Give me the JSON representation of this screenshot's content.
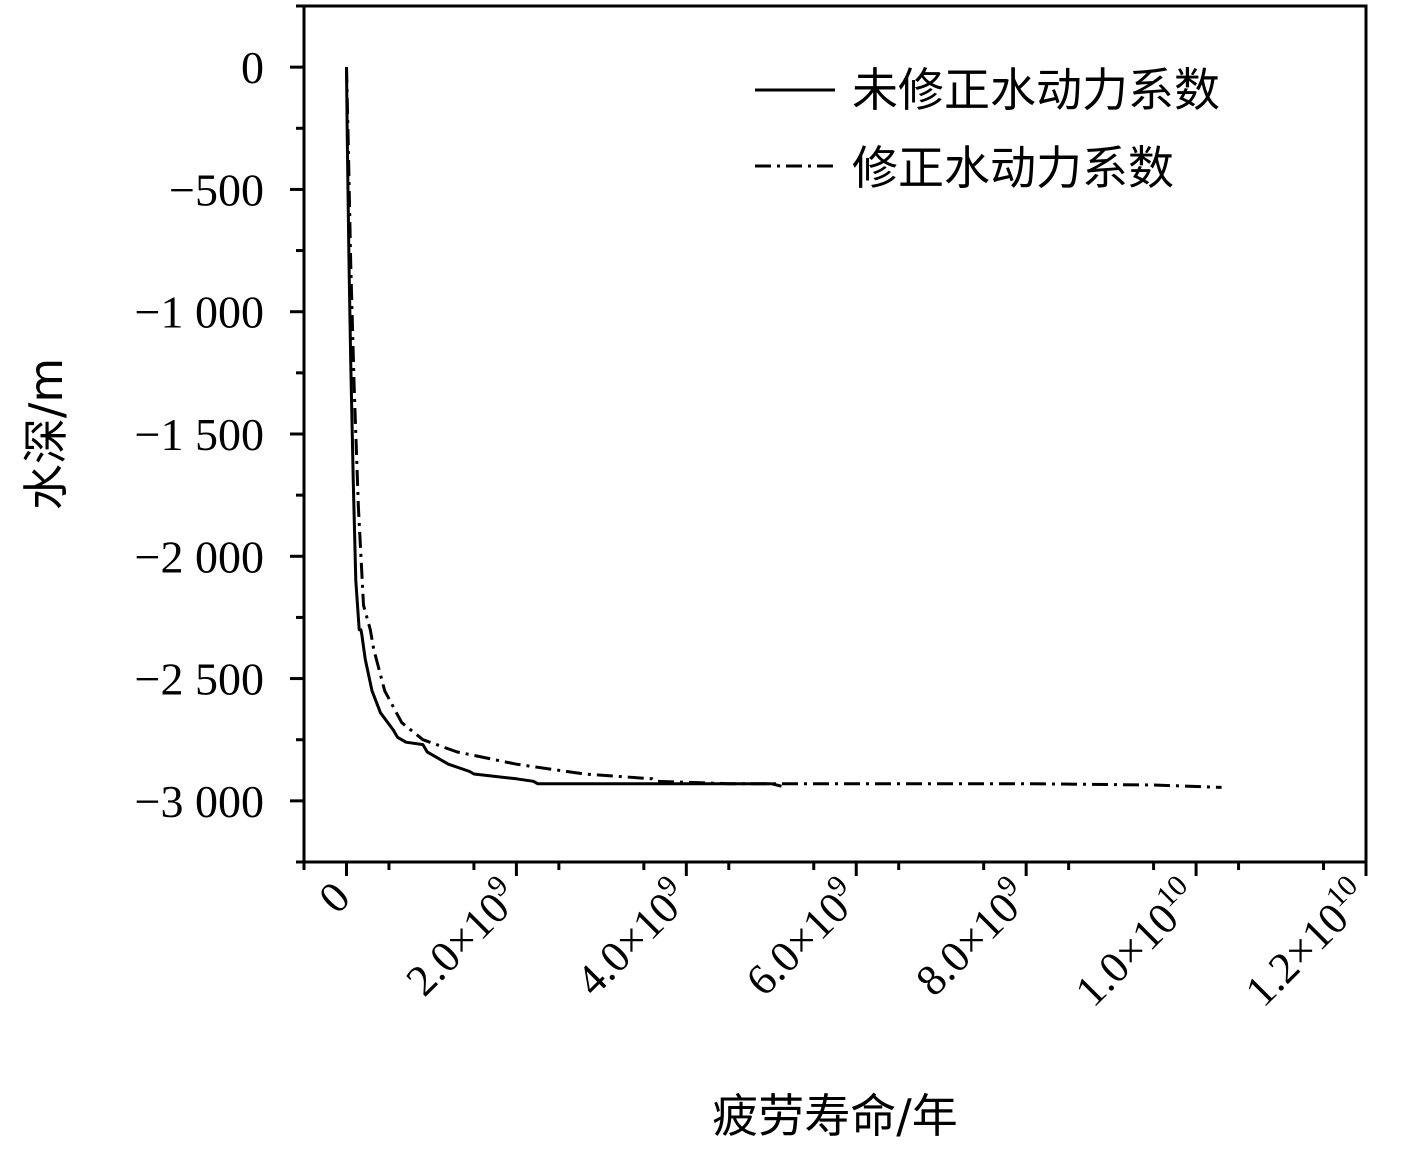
{
  "chart_data": {
    "type": "line",
    "xlabel": "疲劳寿命/年",
    "ylabel": "水深/m",
    "xlim": [
      -500000000,
      12000000000
    ],
    "ylim": [
      -3250,
      250
    ],
    "x_ticks": [
      {
        "value": 0,
        "base": "0",
        "exp": ""
      },
      {
        "value": 2000000000,
        "base": "2.0×10",
        "exp": "9"
      },
      {
        "value": 4000000000,
        "base": "4.0×10",
        "exp": "9"
      },
      {
        "value": 6000000000,
        "base": "6.0×10",
        "exp": "9"
      },
      {
        "value": 8000000000,
        "base": "8.0×10",
        "exp": "9"
      },
      {
        "value": 10000000000,
        "base": "1.0×10",
        "exp": "10"
      },
      {
        "value": 12000000000,
        "base": "1.2×10",
        "exp": "10"
      }
    ],
    "y_ticks": [
      {
        "value": 0,
        "label": "0"
      },
      {
        "value": -500,
        "label": "−500"
      },
      {
        "value": -1000,
        "label": "−1 000"
      },
      {
        "value": -1500,
        "label": "−1 500"
      },
      {
        "value": -2000,
        "label": "−2 000"
      },
      {
        "value": -2500,
        "label": "−2 500"
      },
      {
        "value": -3000,
        "label": "−3 000"
      }
    ],
    "legend_position": "top-right",
    "grid": false,
    "series": [
      {
        "name": "未修正水动力系数",
        "style": "solid",
        "color": "#000000",
        "points": [
          [
            0,
            0
          ],
          [
            10000000,
            -300
          ],
          [
            30000000,
            -800
          ],
          [
            50000000,
            -1200
          ],
          [
            80000000,
            -1700
          ],
          [
            110000000,
            -2100
          ],
          [
            150000000,
            -2300
          ],
          [
            170000000,
            -2300
          ],
          [
            180000000,
            -2320
          ],
          [
            220000000,
            -2420
          ],
          [
            300000000,
            -2550
          ],
          [
            400000000,
            -2640
          ],
          [
            550000000,
            -2710
          ],
          [
            600000000,
            -2740
          ],
          [
            700000000,
            -2760
          ],
          [
            900000000,
            -2770
          ],
          [
            950000000,
            -2800
          ],
          [
            1200000000,
            -2850
          ],
          [
            1450000000,
            -2880
          ],
          [
            1500000000,
            -2890
          ],
          [
            2000000000,
            -2910
          ],
          [
            2200000000,
            -2920
          ],
          [
            2250000000,
            -2930
          ],
          [
            3000000000,
            -2930
          ],
          [
            4000000000,
            -2930
          ],
          [
            5000000000,
            -2930
          ],
          [
            5120000000,
            -2940
          ]
        ]
      },
      {
        "name": "修正水动力系数",
        "style": "dashdot",
        "color": "#000000",
        "points": [
          [
            0,
            0
          ],
          [
            20000000,
            -300
          ],
          [
            50000000,
            -800
          ],
          [
            90000000,
            -1300
          ],
          [
            140000000,
            -1800
          ],
          [
            200000000,
            -2200
          ],
          [
            280000000,
            -2300
          ],
          [
            320000000,
            -2380
          ],
          [
            450000000,
            -2550
          ],
          [
            650000000,
            -2680
          ],
          [
            900000000,
            -2750
          ],
          [
            1300000000,
            -2800
          ],
          [
            2000000000,
            -2850
          ],
          [
            2800000000,
            -2890
          ],
          [
            3600000000,
            -2910
          ],
          [
            3650000000,
            -2920
          ],
          [
            4500000000,
            -2930
          ],
          [
            6000000000,
            -2930
          ],
          [
            8000000000,
            -2930
          ],
          [
            9500000000,
            -2935
          ],
          [
            10300000000,
            -2945
          ]
        ]
      }
    ]
  }
}
